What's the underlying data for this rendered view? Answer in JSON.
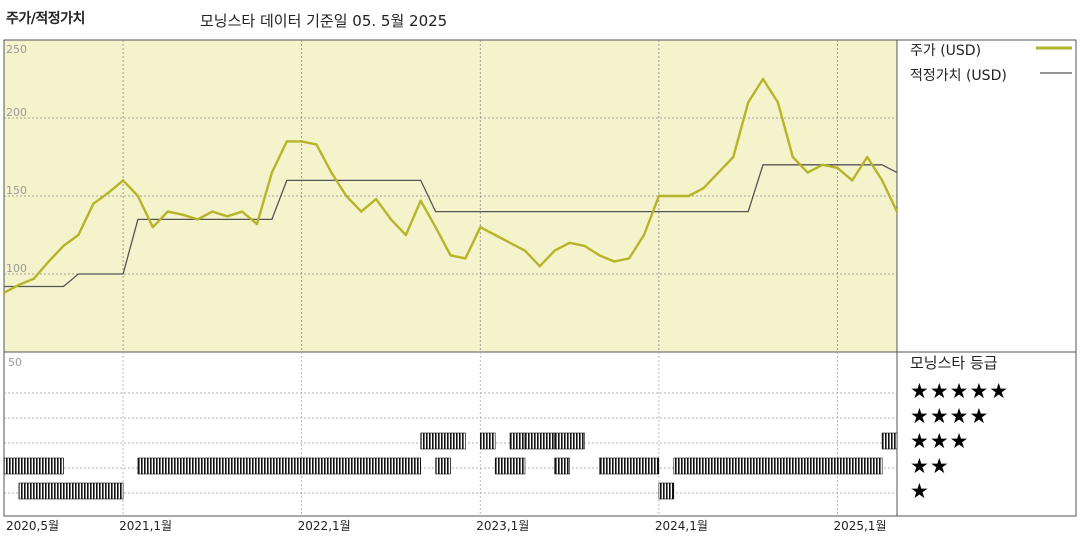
{
  "header": {
    "left_title": "주가/적정가치",
    "subtitle": "모닝스타 데이터 기준일 05. 5월 2025"
  },
  "legend": {
    "price_label": "주가 (USD)",
    "fair_label": "적정가치 (USD)",
    "price_color": "#b5b52a",
    "fair_color": "#555555"
  },
  "rating": {
    "title": "모닝스타 등급",
    "rows": [
      "★★★★★",
      "★★★★",
      "★★★",
      "★★",
      "★"
    ]
  },
  "rating_axis_top_label": "50",
  "chart_data": {
    "type": "line",
    "ylim": [
      50,
      250
    ],
    "yticks": [
      "250",
      "200",
      "150",
      "100"
    ],
    "x_tick_labels": [
      "2020,5월",
      "2021,1월",
      "2022,1월",
      "2023,1월",
      "2024,1월",
      "2025,1월"
    ],
    "x_tick_dates": [
      "2020-05",
      "2021-01",
      "2022-01",
      "2023-01",
      "2024-01",
      "2025-01"
    ],
    "x_range": [
      "2020-05",
      "2025-05"
    ],
    "background_color": "#f5f3cc",
    "series": [
      {
        "name": "주가 (USD)",
        "x": [
          "2020-05",
          "2020-06",
          "2020-07",
          "2020-08",
          "2020-09",
          "2020-10",
          "2020-11",
          "2020-12",
          "2021-01",
          "2021-02",
          "2021-03",
          "2021-04",
          "2021-05",
          "2021-06",
          "2021-07",
          "2021-08",
          "2021-09",
          "2021-10",
          "2021-11",
          "2021-12",
          "2022-01",
          "2022-02",
          "2022-03",
          "2022-04",
          "2022-05",
          "2022-06",
          "2022-07",
          "2022-08",
          "2022-09",
          "2022-10",
          "2022-11",
          "2022-12",
          "2023-01",
          "2023-02",
          "2023-03",
          "2023-04",
          "2023-05",
          "2023-06",
          "2023-07",
          "2023-08",
          "2023-09",
          "2023-10",
          "2023-11",
          "2023-12",
          "2024-01",
          "2024-02",
          "2024-03",
          "2024-04",
          "2024-05",
          "2024-06",
          "2024-07",
          "2024-08",
          "2024-09",
          "2024-10",
          "2024-11",
          "2024-12",
          "2025-01",
          "2025-02",
          "2025-03",
          "2025-04",
          "2025-05"
        ],
        "values": [
          88,
          93,
          97,
          108,
          118,
          125,
          145,
          152,
          160,
          150,
          130,
          140,
          138,
          135,
          140,
          137,
          140,
          132,
          165,
          185,
          185,
          183,
          165,
          150,
          140,
          148,
          135,
          125,
          147,
          130,
          112,
          110,
          130,
          125,
          120,
          115,
          105,
          115,
          120,
          118,
          112,
          108,
          110,
          125,
          150,
          150,
          150,
          155,
          165,
          175,
          210,
          225,
          210,
          175,
          165,
          170,
          168,
          160,
          175,
          160,
          140
        ]
      },
      {
        "name": "적정가치 (USD)",
        "x": [
          "2020-05",
          "2020-09",
          "2020-10",
          "2021-01",
          "2021-02",
          "2021-11",
          "2021-12",
          "2022-09",
          "2022-10",
          "2023-12",
          "2024-01",
          "2024-07",
          "2024-08",
          "2025-04",
          "2025-05"
        ],
        "values": [
          92,
          92,
          100,
          100,
          135,
          135,
          160,
          160,
          140,
          140,
          140,
          140,
          170,
          170,
          165
        ]
      }
    ],
    "rating_bars": [
      {
        "stars": 4,
        "start": "2022-09",
        "end": "2022-12"
      },
      {
        "stars": 4,
        "start": "2023-01",
        "end": "2023-02"
      },
      {
        "stars": 4,
        "start": "2023-03",
        "end": "2023-04"
      },
      {
        "stars": 4,
        "start": "2023-04",
        "end": "2023-06"
      },
      {
        "stars": 4,
        "start": "2023-06",
        "end": "2023-08"
      },
      {
        "stars": 4,
        "start": "2025-04",
        "end": "2025-05"
      },
      {
        "stars": 3,
        "start": "2020-05",
        "end": "2020-09"
      },
      {
        "stars": 3,
        "start": "2021-02",
        "end": "2022-09"
      },
      {
        "stars": 3,
        "start": "2022-10",
        "end": "2022-11"
      },
      {
        "stars": 3,
        "start": "2023-02",
        "end": "2023-04"
      },
      {
        "stars": 3,
        "start": "2023-06",
        "end": "2023-07"
      },
      {
        "stars": 3,
        "start": "2023-09",
        "end": "2024-01"
      },
      {
        "stars": 3,
        "start": "2024-02",
        "end": "2025-04"
      },
      {
        "stars": 2,
        "start": "2020-06",
        "end": "2021-01"
      },
      {
        "stars": 2,
        "start": "2024-01",
        "end": "2024-02"
      }
    ]
  }
}
